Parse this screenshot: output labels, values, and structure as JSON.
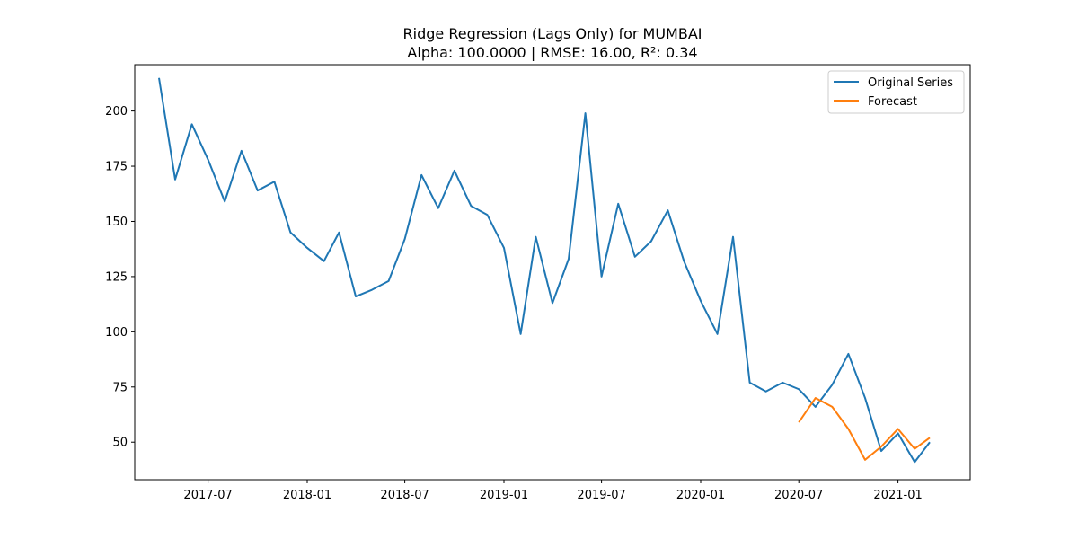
{
  "chart_data": {
    "type": "line",
    "title": "Ridge Regression (Lags Only) for MUMBAI",
    "subtitle": "Alpha: 100.0000 | RMSE: 16.00, R²: 0.34",
    "xlabel": "",
    "ylabel": "",
    "grid": false,
    "legend_position": "top-right",
    "x_range": [
      "2017-02-15",
      "2021-05-15"
    ],
    "y_range": [
      33,
      221
    ],
    "x_ticks": [
      {
        "date": "2017-07-01",
        "label": "2017-07"
      },
      {
        "date": "2018-01-01",
        "label": "2018-01"
      },
      {
        "date": "2018-07-01",
        "label": "2018-07"
      },
      {
        "date": "2019-01-01",
        "label": "2019-01"
      },
      {
        "date": "2019-07-01",
        "label": "2019-07"
      },
      {
        "date": "2020-01-01",
        "label": "2020-01"
      },
      {
        "date": "2020-07-01",
        "label": "2020-07"
      },
      {
        "date": "2021-01-01",
        "label": "2021-01"
      }
    ],
    "y_ticks": [
      50,
      75,
      100,
      125,
      150,
      175,
      200
    ],
    "series": [
      {
        "name": "Original Series",
        "color": "#1f77b4",
        "x": [
          "2017-04-01",
          "2017-05-01",
          "2017-06-01",
          "2017-07-01",
          "2017-08-01",
          "2017-09-01",
          "2017-10-01",
          "2017-11-01",
          "2017-12-01",
          "2018-01-01",
          "2018-02-01",
          "2018-03-01",
          "2018-04-01",
          "2018-05-01",
          "2018-06-01",
          "2018-07-01",
          "2018-08-01",
          "2018-09-01",
          "2018-10-01",
          "2018-11-01",
          "2018-12-01",
          "2019-01-01",
          "2019-02-01",
          "2019-03-01",
          "2019-04-01",
          "2019-05-01",
          "2019-06-01",
          "2019-07-01",
          "2019-08-01",
          "2019-09-01",
          "2019-10-01",
          "2019-11-01",
          "2019-12-01",
          "2020-01-01",
          "2020-02-01",
          "2020-03-01",
          "2020-04-01",
          "2020-05-01",
          "2020-06-01",
          "2020-07-01",
          "2020-08-01",
          "2020-09-01",
          "2020-10-01",
          "2020-11-01",
          "2020-12-01",
          "2021-01-01",
          "2021-02-01",
          "2021-03-01"
        ],
        "y": [
          215,
          169,
          194,
          178,
          159,
          182,
          164,
          168,
          145,
          138,
          132,
          145,
          116,
          119,
          123,
          142,
          171,
          156,
          173,
          157,
          153,
          138,
          99,
          143,
          113,
          133,
          199,
          125,
          158,
          134,
          141,
          155,
          132,
          114,
          99,
          143,
          77,
          73,
          77,
          74,
          66,
          76,
          90,
          70,
          46,
          54,
          41,
          50
        ]
      },
      {
        "name": "Forecast",
        "color": "#ff7f0e",
        "x": [
          "2020-07-01",
          "2020-08-01",
          "2020-09-01",
          "2020-10-01",
          "2020-11-01",
          "2020-12-01",
          "2021-01-01",
          "2021-02-01",
          "2021-03-01"
        ],
        "y": [
          59,
          70,
          66,
          56,
          42,
          48,
          56,
          47,
          52
        ]
      }
    ]
  }
}
